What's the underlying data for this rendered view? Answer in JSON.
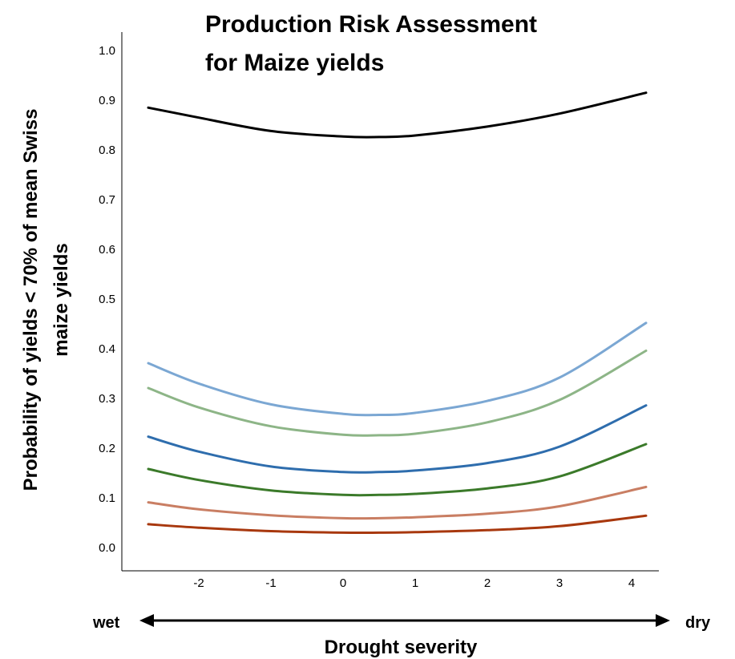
{
  "chart_data": {
    "type": "line",
    "title_lines": [
      "Production Risk Assessment",
      "for Maize yields"
    ],
    "ylabel_lines": [
      "Probability of yields < 70% of mean Swiss",
      "maize yields"
    ],
    "xlabel": "Drought severity",
    "x_left_label": "wet",
    "x_right_label": "dry",
    "xlim": [
      -2.7,
      4.2
    ],
    "ylim": [
      0.0,
      1.0
    ],
    "x_ticks": [
      -2,
      -1,
      0,
      1,
      2,
      3,
      4
    ],
    "y_ticks": [
      0.0,
      0.1,
      0.2,
      0.3,
      0.4,
      0.5,
      0.6,
      0.7,
      0.8,
      0.9,
      1.0
    ],
    "grid": false,
    "series": [
      {
        "color": "#000000",
        "x": [
          -2.7,
          -2,
          -1,
          0,
          0.5,
          1,
          2,
          3,
          4.2
        ],
        "y": [
          0.885,
          0.865,
          0.838,
          0.827,
          0.826,
          0.829,
          0.847,
          0.873,
          0.915
        ]
      },
      {
        "color": "#7ba7d3",
        "x": [
          -2.7,
          -2,
          -1,
          0,
          0.5,
          1,
          2,
          3,
          4.2
        ],
        "y": [
          0.371,
          0.33,
          0.288,
          0.269,
          0.267,
          0.271,
          0.295,
          0.342,
          0.452
        ]
      },
      {
        "color": "#8db587",
        "x": [
          -2.7,
          -2,
          -1,
          0,
          0.5,
          1,
          2,
          3,
          4.2
        ],
        "y": [
          0.321,
          0.282,
          0.244,
          0.227,
          0.226,
          0.229,
          0.252,
          0.297,
          0.396
        ]
      },
      {
        "color": "#2e6dad",
        "x": [
          -2.7,
          -2,
          -1,
          0,
          0.5,
          1,
          2,
          3,
          4.2
        ],
        "y": [
          0.223,
          0.193,
          0.163,
          0.152,
          0.152,
          0.155,
          0.17,
          0.203,
          0.286
        ]
      },
      {
        "color": "#3b7a2a",
        "x": [
          -2.7,
          -2,
          -1,
          0,
          0.5,
          1,
          2,
          3,
          4.2
        ],
        "y": [
          0.158,
          0.136,
          0.115,
          0.106,
          0.106,
          0.108,
          0.119,
          0.143,
          0.208
        ]
      },
      {
        "color": "#c97e63",
        "x": [
          -2.7,
          -2,
          -1,
          0,
          0.5,
          1,
          2,
          3,
          4.2
        ],
        "y": [
          0.091,
          0.077,
          0.065,
          0.059,
          0.059,
          0.061,
          0.068,
          0.083,
          0.122
        ]
      },
      {
        "color": "#a8380e",
        "x": [
          -2.7,
          -2,
          -1,
          0,
          0.5,
          1,
          2,
          3,
          4.2
        ],
        "y": [
          0.047,
          0.04,
          0.033,
          0.03,
          0.03,
          0.031,
          0.035,
          0.043,
          0.064
        ]
      }
    ]
  }
}
